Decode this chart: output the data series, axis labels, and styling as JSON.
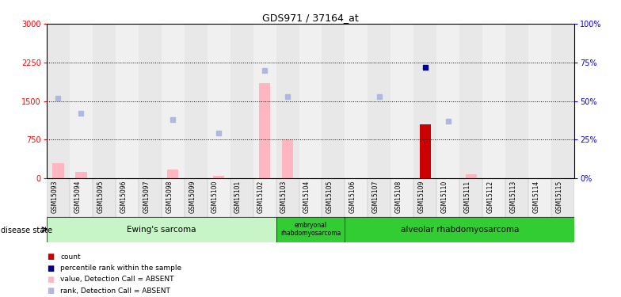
{
  "title": "GDS971 / 37164_at",
  "samples": [
    "GSM15093",
    "GSM15094",
    "GSM15095",
    "GSM15096",
    "GSM15097",
    "GSM15098",
    "GSM15099",
    "GSM15100",
    "GSM15101",
    "GSM15102",
    "GSM15103",
    "GSM15104",
    "GSM15105",
    "GSM15106",
    "GSM15107",
    "GSM15108",
    "GSM15109",
    "GSM15110",
    "GSM15111",
    "GSM15112",
    "GSM15113",
    "GSM15114",
    "GSM15115"
  ],
  "value_absent": [
    300,
    130,
    0,
    0,
    0,
    170,
    0,
    50,
    0,
    1850,
    750,
    0,
    0,
    0,
    0,
    0,
    0,
    0,
    80,
    0,
    0,
    0,
    0
  ],
  "rank_absent_pct": [
    52,
    42,
    1,
    1,
    1,
    38,
    1,
    29,
    1,
    70,
    53,
    1,
    1,
    1,
    53,
    1,
    1,
    37,
    1,
    1,
    1,
    1,
    1
  ],
  "count_present": [
    0,
    0,
    0,
    0,
    0,
    0,
    0,
    0,
    0,
    0,
    0,
    0,
    0,
    0,
    0,
    0,
    1050,
    0,
    0,
    0,
    0,
    0,
    0
  ],
  "rank_present_pct": [
    0,
    0,
    0,
    0,
    0,
    0,
    0,
    0,
    0,
    0,
    0,
    0,
    0,
    0,
    0,
    0,
    72,
    0,
    0,
    0,
    0,
    0,
    0
  ],
  "ylim_left": [
    0,
    3000
  ],
  "ylim_right": [
    0,
    100
  ],
  "yticks_left": [
    0,
    750,
    1500,
    2250,
    3000
  ],
  "yticks_right": [
    0,
    25,
    50,
    75,
    100
  ],
  "color_value_absent": "#ffb6c1",
  "color_rank_absent": "#b0b8e0",
  "color_count_present": "#cc0000",
  "color_rank_present": "#00008b",
  "bg_color": "#ffffff",
  "col_bg_odd": "#e8e8e8",
  "col_bg_even": "#f0f0f0",
  "grid_dotted_color": "#000000",
  "group_ewing_color": "#c8f5c8",
  "group_embryonal_color": "#32cd32",
  "group_alveolar_color": "#32cd32",
  "group_ewing_label": "Ewing's sarcoma",
  "group_embryonal_label": "embryonal\nrhabdomyosarcoma",
  "group_alveolar_label": "alveolar rhabdomyosarcoma",
  "disease_state_label": "disease state"
}
